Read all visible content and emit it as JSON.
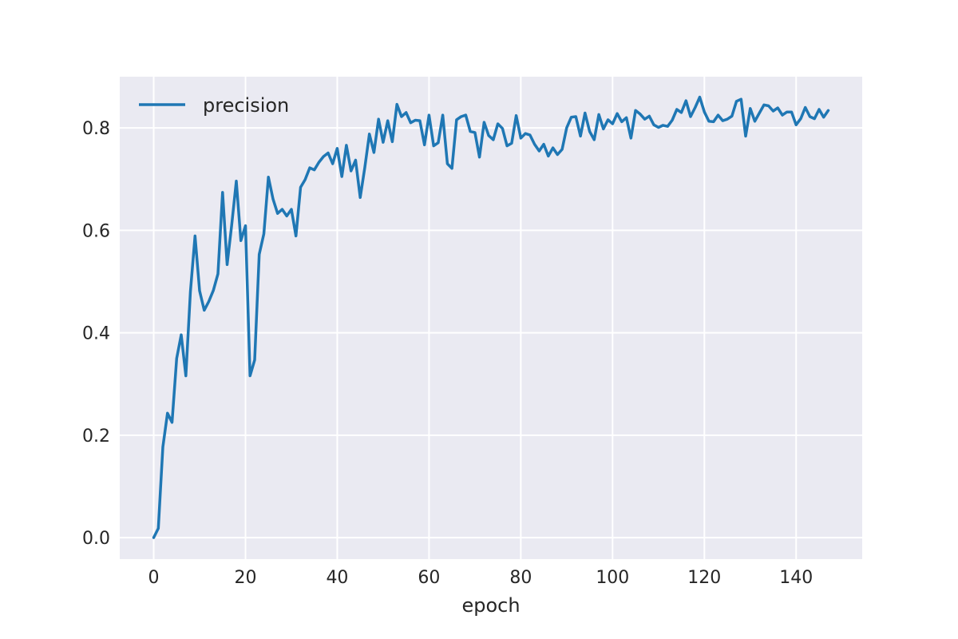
{
  "chart_data": {
    "type": "line",
    "title": "",
    "xlabel": "epoch",
    "ylabel": "",
    "xlim": [
      -7.4,
      154.4
    ],
    "ylim": [
      -0.042,
      0.9
    ],
    "xticks": [
      0,
      20,
      40,
      60,
      80,
      100,
      120,
      140
    ],
    "yticks": [
      0.0,
      0.2,
      0.4,
      0.6,
      0.8
    ],
    "xtick_labels": [
      "0",
      "20",
      "40",
      "60",
      "80",
      "100",
      "120",
      "140"
    ],
    "ytick_labels": [
      "0.0",
      "0.2",
      "0.4",
      "0.6",
      "0.8"
    ],
    "grid": true,
    "legend_position": "top-left",
    "colors": {
      "background": "#eaeaf2",
      "grid": "#ffffff",
      "series": "#1f77b4"
    },
    "series": [
      {
        "name": "precision",
        "x": [
          0,
          1,
          2,
          3,
          4,
          5,
          6,
          7,
          8,
          9,
          10,
          11,
          12,
          13,
          14,
          15,
          16,
          17,
          18,
          19,
          20,
          21,
          22,
          23,
          24,
          25,
          26,
          27,
          28,
          29,
          30,
          31,
          32,
          33,
          34,
          35,
          36,
          37,
          38,
          39,
          40,
          41,
          42,
          43,
          44,
          45,
          46,
          47,
          48,
          49,
          50,
          51,
          52,
          53,
          54,
          55,
          56,
          57,
          58,
          59,
          60,
          61,
          62,
          63,
          64,
          65,
          66,
          67,
          68,
          69,
          70,
          71,
          72,
          73,
          74,
          75,
          76,
          77,
          78,
          79,
          80,
          81,
          82,
          83,
          84,
          85,
          86,
          87,
          88,
          89,
          90,
          91,
          92,
          93,
          94,
          95,
          96,
          97,
          98,
          99,
          100,
          101,
          102,
          103,
          104,
          105,
          106,
          107,
          108,
          109,
          110,
          111,
          112,
          113,
          114,
          115,
          116,
          117,
          118,
          119,
          120,
          121,
          122,
          123,
          124,
          125,
          126,
          127,
          128,
          129,
          130,
          131,
          132,
          133,
          134,
          135,
          136,
          137,
          138,
          139,
          140,
          141,
          142,
          143,
          144,
          145,
          146,
          147
        ],
        "y": [
          0.0,
          0.018,
          0.177,
          0.243,
          0.225,
          0.35,
          0.396,
          0.316,
          0.48,
          0.589,
          0.482,
          0.444,
          0.461,
          0.483,
          0.515,
          0.674,
          0.533,
          0.61,
          0.696,
          0.58,
          0.609,
          0.316,
          0.347,
          0.553,
          0.593,
          0.704,
          0.661,
          0.633,
          0.641,
          0.628,
          0.641,
          0.589,
          0.684,
          0.699,
          0.722,
          0.718,
          0.733,
          0.744,
          0.751,
          0.73,
          0.76,
          0.705,
          0.766,
          0.716,
          0.737,
          0.664,
          0.722,
          0.788,
          0.752,
          0.817,
          0.772,
          0.814,
          0.773,
          0.846,
          0.822,
          0.83,
          0.81,
          0.815,
          0.814,
          0.767,
          0.825,
          0.765,
          0.771,
          0.825,
          0.73,
          0.721,
          0.816,
          0.822,
          0.825,
          0.793,
          0.791,
          0.743,
          0.811,
          0.785,
          0.777,
          0.808,
          0.799,
          0.765,
          0.77,
          0.824,
          0.78,
          0.789,
          0.786,
          0.768,
          0.755,
          0.768,
          0.745,
          0.761,
          0.748,
          0.758,
          0.8,
          0.821,
          0.822,
          0.784,
          0.829,
          0.793,
          0.777,
          0.826,
          0.798,
          0.816,
          0.808,
          0.828,
          0.812,
          0.82,
          0.78,
          0.834,
          0.827,
          0.817,
          0.823,
          0.806,
          0.801,
          0.805,
          0.803,
          0.815,
          0.836,
          0.83,
          0.853,
          0.822,
          0.84,
          0.86,
          0.831,
          0.813,
          0.812,
          0.825,
          0.814,
          0.817,
          0.823,
          0.852,
          0.856,
          0.784,
          0.838,
          0.813,
          0.829,
          0.845,
          0.843,
          0.833,
          0.839,
          0.825,
          0.831,
          0.831,
          0.806,
          0.818,
          0.84,
          0.822,
          0.818,
          0.836,
          0.821,
          0.834
        ]
      }
    ]
  }
}
